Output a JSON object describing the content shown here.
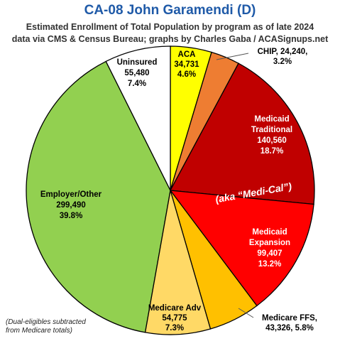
{
  "title": "CA-08 John Garamendi (D)",
  "subtitle_line1": "Estimated Enrollment of Total Population by program as of late 2024",
  "subtitle_line2": "data via CMS & Census Bureau; graphs by Charles Gaba / ACASignups.net",
  "note_line1": "(Dual-eligibles subtracted",
  "note_line2": "from Medicare totals)",
  "aka_label": "(aka “Medi-Cal”)",
  "chart_data": {
    "type": "pie",
    "start": "12 o'clock",
    "direction": "clockwise",
    "slices": [
      {
        "lines": [
          "ACA",
          "34,731",
          "4.6%"
        ],
        "value": 34731,
        "percent": 4.6,
        "color": "#ffff00",
        "text_color": "#000000"
      },
      {
        "lines": [
          "CHIP, 24,240,",
          "3.2%"
        ],
        "value": 24240,
        "percent": 3.2,
        "color": "#ee7d32",
        "text_color": "#000000"
      },
      {
        "lines": [
          "Medicaid",
          "Traditional",
          "140,560",
          "18.7%"
        ],
        "value": 140560,
        "percent": 18.7,
        "color": "#c00000",
        "text_color": "#ffffff"
      },
      {
        "lines": [
          "Medicaid",
          "Expansion",
          "99,407",
          "13.2%"
        ],
        "value": 99407,
        "percent": 13.2,
        "color": "#ff0000",
        "text_color": "#ffffff"
      },
      {
        "lines": [
          "Medicare FFS,",
          "43,326, 5.8%"
        ],
        "value": 43326,
        "percent": 5.8,
        "color": "#ffc000",
        "text_color": "#000000"
      },
      {
        "lines": [
          "Medicare Adv",
          "54,775",
          "7.3%"
        ],
        "value": 54775,
        "percent": 7.3,
        "color": "#ffd966",
        "text_color": "#000000"
      },
      {
        "lines": [
          "Employer/Other",
          "299,490",
          "39.8%"
        ],
        "value": 299490,
        "percent": 39.8,
        "color": "#92d050",
        "text_color": "#000000"
      },
      {
        "lines": [
          "Uninsured",
          "55,480",
          "7.4%"
        ],
        "value": 55480,
        "percent": 7.4,
        "color": "#ffffff",
        "text_color": "#000000"
      }
    ]
  }
}
